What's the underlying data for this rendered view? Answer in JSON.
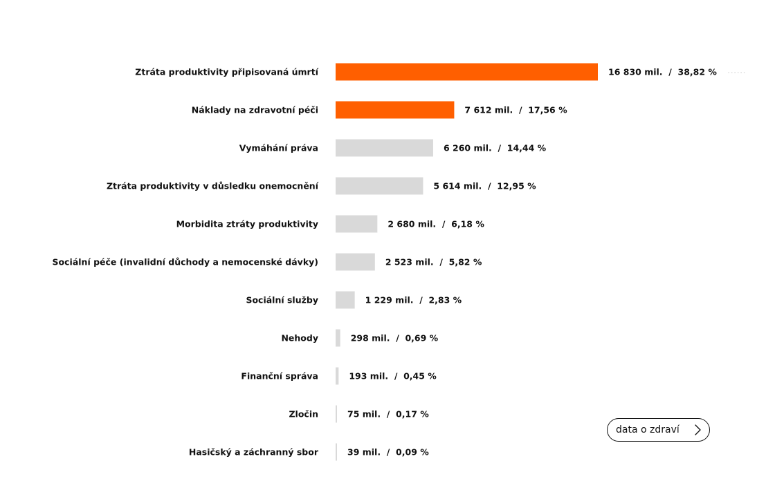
{
  "chart_data": {
    "type": "bar",
    "orientation": "horizontal",
    "categories": [
      "Ztráta produktivity připisovaná úmrtí",
      "Náklady na zdravotní péči",
      "Vymáhání práva",
      "Ztráta produktivity v důsledku onemocnění",
      "Morbidita ztráty produktivity",
      "Sociální péče (invalidní důchody a nemocenské dávky)",
      "Sociální služby",
      "Nehody",
      "Finanční správa",
      "Zločin",
      "Hasičský a záchranný sbor"
    ],
    "values": [
      16830,
      7612,
      6260,
      5614,
      2680,
      2523,
      1229,
      298,
      193,
      75,
      39
    ],
    "value_labels": [
      "16 830 mil.  /  38,82 %",
      "7 612 mil.  /  17,56 %",
      "6 260 mil.  /  14,44 %",
      "5 614 mil.  /  12,95 %",
      "2 680 mil.  /  6,18 %",
      "2 523 mil.  /  5,82 %",
      "1 229 mil.  /  2,83 %",
      "298 mil.  /  0,69 %",
      "193 mil.  /  0,45 %",
      "75 mil.  /  0,17 %",
      "39 mil.  /  0,09 %"
    ],
    "highlighted": [
      true,
      true,
      false,
      false,
      false,
      false,
      false,
      false,
      false,
      false,
      false
    ],
    "colors": {
      "highlight": "#ff5f00",
      "default": "#d9d9d9",
      "text": "#111111"
    },
    "xlim": [
      0,
      16830
    ],
    "grid": false,
    "legend": "none"
  },
  "button": {
    "label": "data o zdraví",
    "icon": "chevron-right-icon"
  }
}
